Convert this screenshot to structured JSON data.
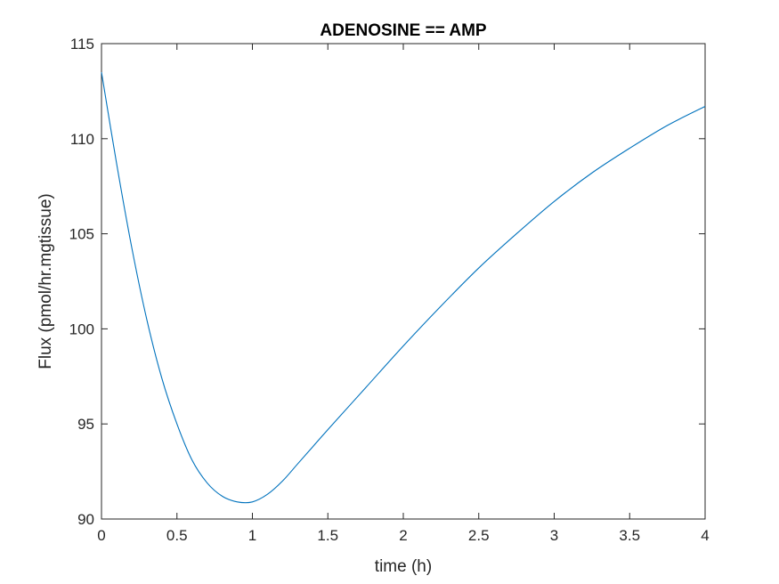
{
  "chart_data": {
    "type": "line",
    "title": "ADENOSINE == AMP",
    "xlabel": "time (h)",
    "ylabel": "Flux (pmol/hr.mgtissue)",
    "xlim": [
      0,
      4
    ],
    "ylim": [
      90,
      115
    ],
    "xticks": [
      0,
      0.5,
      1,
      1.5,
      2,
      2.5,
      3,
      3.5,
      4
    ],
    "xtick_labels": [
      "0",
      "0.5",
      "1",
      "1.5",
      "2",
      "2.5",
      "3",
      "3.5",
      "4"
    ],
    "yticks": [
      90,
      95,
      100,
      105,
      110,
      115
    ],
    "ytick_labels": [
      "90",
      "95",
      "100",
      "105",
      "110",
      "115"
    ],
    "grid": false,
    "line_color": "#0072BD",
    "series": [
      {
        "x": [
          0,
          0.1,
          0.2,
          0.3,
          0.4,
          0.5,
          0.6,
          0.7,
          0.8,
          0.9,
          1.0,
          1.1,
          1.2,
          1.3,
          1.4,
          1.5,
          1.75,
          2.0,
          2.25,
          2.5,
          2.75,
          3.0,
          3.25,
          3.5,
          3.75,
          4.0
        ],
        "y": [
          113.5,
          108.7,
          104.3,
          100.5,
          97.4,
          95.0,
          93.1,
          91.9,
          91.2,
          90.9,
          90.9,
          91.3,
          92.0,
          92.9,
          93.8,
          94.7,
          96.9,
          99.1,
          101.2,
          103.2,
          105.0,
          106.7,
          108.2,
          109.5,
          110.7,
          111.7
        ]
      }
    ]
  }
}
